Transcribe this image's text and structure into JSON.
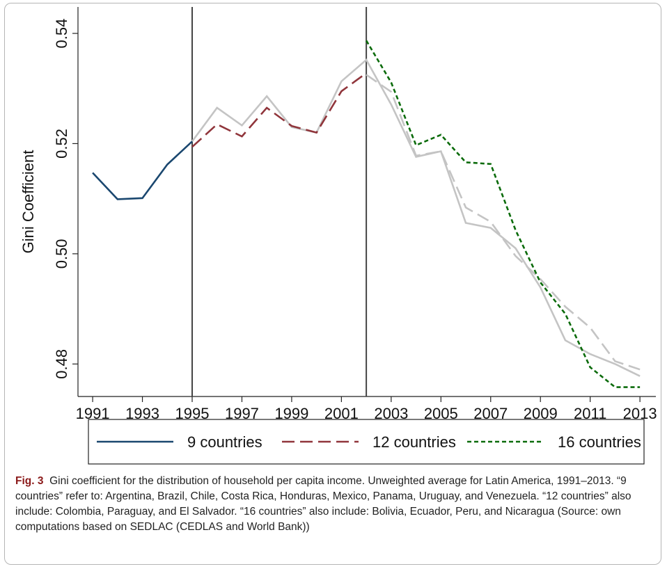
{
  "chart_data": {
    "type": "line",
    "ylabel": "Gini Coefficient",
    "x": [
      1991,
      1992,
      1993,
      1994,
      1995,
      1996,
      1997,
      1998,
      1999,
      2000,
      2001,
      2002,
      2003,
      2004,
      2005,
      2006,
      2007,
      2008,
      2009,
      2010,
      2011,
      2012,
      2013
    ],
    "xlim": [
      1990.41,
      2013.64
    ],
    "xticks": [
      1991,
      1993,
      1995,
      1997,
      1999,
      2001,
      2003,
      2005,
      2007,
      2009,
      2011,
      2013
    ],
    "ylim": [
      0.4741,
      0.5448
    ],
    "yticks": [
      0.48,
      {
        "value": 0.5,
        "label": "0.50"
      },
      0.52,
      0.54
    ],
    "vlines": [
      1995,
      2002
    ],
    "series": [
      {
        "color": "#c4c4c4",
        "dash": "solid",
        "values": [
          null,
          null,
          null,
          null,
          0.5204,
          0.5265,
          0.5233,
          0.5286,
          0.523,
          0.522,
          0.5313,
          0.5352,
          0.5271,
          0.5176,
          0.5186,
          0.5056,
          0.5047,
          0.501,
          0.4939,
          0.4843,
          0.4818,
          0.48,
          0.4778
        ]
      },
      {
        "color": "#c4c4c4",
        "dash": "long",
        "values": [
          null,
          null,
          null,
          null,
          null,
          null,
          null,
          null,
          null,
          null,
          null,
          0.5325,
          0.5294,
          0.5178,
          0.5186,
          0.5084,
          0.5058,
          0.4996,
          0.4954,
          0.4904,
          0.4866,
          0.4805,
          0.479
        ]
      },
      {
        "name": "9 countries",
        "color": "#1a476f",
        "dash": "solid",
        "values": [
          0.5147,
          0.5099,
          0.5101,
          0.5162,
          0.5204,
          null,
          null,
          null,
          null,
          null,
          null,
          null,
          null,
          null,
          null,
          null,
          null,
          null,
          null,
          null,
          null,
          null,
          null
        ]
      },
      {
        "name": "12 countries",
        "color": "#90353b",
        "dash": "long",
        "values": [
          null,
          null,
          null,
          null,
          0.5194,
          0.5235,
          0.5213,
          0.5265,
          0.5232,
          0.522,
          0.5295,
          0.5328,
          null,
          null,
          null,
          null,
          null,
          null,
          null,
          null,
          null,
          null,
          null
        ]
      },
      {
        "name": "16 countries",
        "color": "#0b6b0b",
        "dash": "short",
        "values": [
          null,
          null,
          null,
          null,
          null,
          null,
          null,
          null,
          null,
          null,
          null,
          0.5387,
          0.5311,
          0.5197,
          0.5216,
          0.5166,
          0.5163,
          0.5043,
          0.4948,
          0.4891,
          0.4794,
          0.4758,
          0.4758
        ]
      }
    ],
    "caption_label": "Fig. 3",
    "caption": "Gini coefficient for the distribution of household per capita income. Unweighted average for Latin America, 1991–2013. “9 countries” refer to: Argentina, Brazil, Chile, Costa Rica, Honduras, Mexico, Panama, Uruguay, and Venezuela. “12 countries” also include: Colombia, Paraguay, and El Salvador. “16 countries” also include: Bolivia, Ecuador, Peru, and Nicaragua (Source: own computations based on SEDLAC (CEDLAS and World Bank))"
  }
}
